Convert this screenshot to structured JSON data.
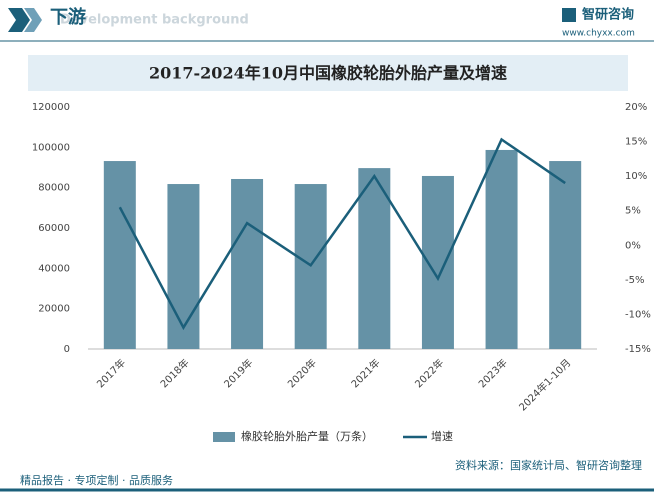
{
  "header": {
    "title": "下游",
    "subtitle": "Development background",
    "brand": "智研咨询",
    "url": "www.chyxx.com"
  },
  "footer": {
    "slogan": "精品报告 · 专项定制 · 品质服务",
    "source": "资料来源：国家统计局、智研咨询整理"
  },
  "chart_data": {
    "type": "bar",
    "title": "2017-2024年10月中国橡胶轮胎外胎产量及增速",
    "categories": [
      "2017年",
      "2018年",
      "2019年",
      "2020年",
      "2021年",
      "2022年",
      "2023年",
      "2024年1-10月"
    ],
    "series": [
      {
        "name": "橡胶轮胎外胎产量（万条）",
        "type": "bar",
        "color": "#6592a6",
        "values": [
          93200,
          81800,
          84300,
          81800,
          89700,
          85800,
          98700,
          93200
        ]
      },
      {
        "name": "增速",
        "type": "line",
        "axis": "y2",
        "color": "#1b5f7a",
        "values": [
          5.5,
          -11.9,
          3.2,
          -2.9,
          10.0,
          -4.8,
          15.3,
          9.0
        ]
      }
    ],
    "ylim": [
      0,
      120000
    ],
    "yticks": [
      0,
      20000,
      40000,
      60000,
      80000,
      100000,
      120000
    ],
    "y2lim": [
      -15,
      20
    ],
    "y2ticks": [
      {
        "value": -15,
        "label": "-15%"
      },
      {
        "value": -10,
        "label": "-10%"
      },
      {
        "value": -5,
        "label": "-5%"
      },
      {
        "value": 0,
        "label": "0%"
      },
      {
        "value": 5,
        "label": "5%"
      },
      {
        "value": 10,
        "label": "10%"
      },
      {
        "value": 15,
        "label": "15%"
      },
      {
        "value": 20,
        "label": "20%"
      }
    ],
    "legend": "bottom"
  }
}
